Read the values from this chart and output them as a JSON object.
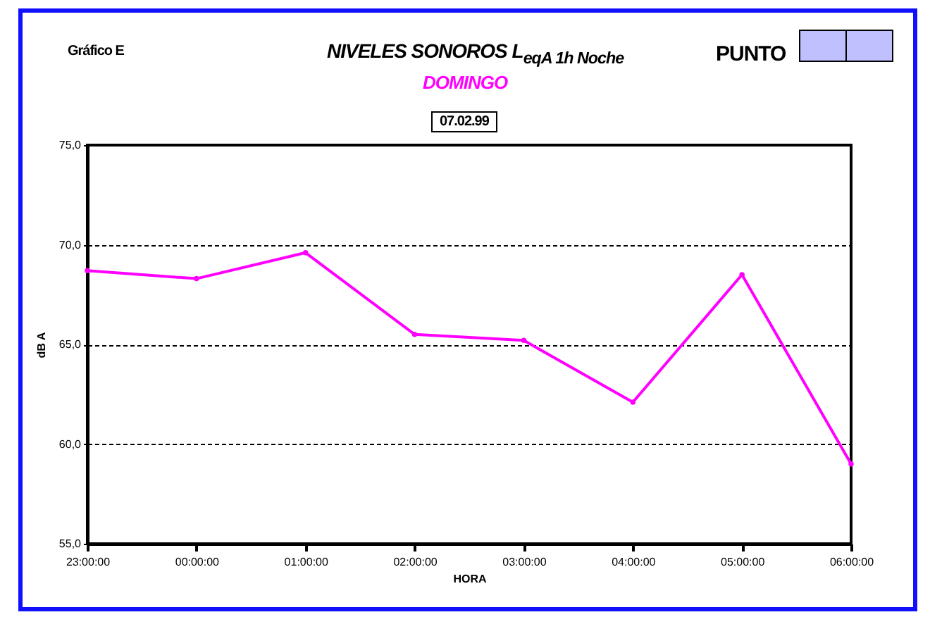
{
  "chart_data": {
    "type": "line",
    "title": "NIVELES SONOROS L$_{eqA 1h Noche}$",
    "subtitle": "DOMINGO",
    "xlabel": "HORA",
    "ylabel": "dB A",
    "annotations": [
      "Gráfico E",
      "PUNTO",
      "07.02.99"
    ],
    "categories": [
      "23:00:00",
      "00:00:00",
      "01:00:00",
      "02:00:00",
      "03:00:00",
      "04:00:00",
      "05:00:00",
      "06:00:00"
    ],
    "series": [
      {
        "color": "#ff00ff",
        "values": [
          68.7,
          68.3,
          69.6,
          65.5,
          65.2,
          62.1,
          68.5,
          59.0
        ]
      }
    ],
    "ylim": [
      55,
      75
    ],
    "yticks": [
      {
        "value": 55,
        "label": "55,0"
      },
      {
        "value": 60,
        "label": "60,0"
      },
      {
        "value": 65,
        "label": "65,0"
      },
      {
        "value": 70,
        "label": "70,0"
      },
      {
        "value": 75,
        "label": "75,0"
      }
    ],
    "grid": "y",
    "marker": "circle",
    "line_style": "solid"
  }
}
